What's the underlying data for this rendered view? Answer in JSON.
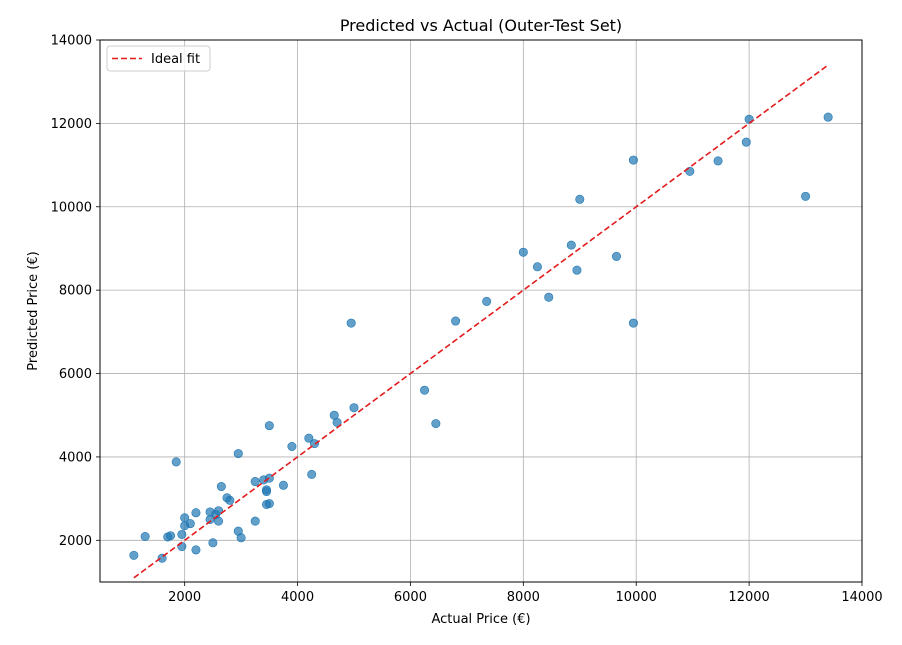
{
  "chart_data": {
    "type": "scatter",
    "title": "Predicted vs Actual (Outer-Test Set)",
    "xlabel": "Actual Price (€)",
    "ylabel": "Predicted Price (€)",
    "xlim": [
      500,
      14000
    ],
    "ylim": [
      1000,
      14000
    ],
    "xticks": [
      2000,
      4000,
      6000,
      8000,
      10000,
      12000,
      14000
    ],
    "yticks": [
      2000,
      4000,
      6000,
      8000,
      10000,
      12000,
      14000
    ],
    "grid": true,
    "legend_position": "top-left",
    "point_color": "#1f77b4",
    "line_color": "#e41a1c",
    "ideal_fit": {
      "name": "Ideal fit",
      "range": [
        1100,
        13400
      ]
    },
    "points": [
      [
        1100,
        1640
      ],
      [
        1300,
        2090
      ],
      [
        1600,
        1570
      ],
      [
        1700,
        2080
      ],
      [
        1750,
        2110
      ],
      [
        1850,
        3880
      ],
      [
        1950,
        1850
      ],
      [
        1950,
        2140
      ],
      [
        2000,
        2350
      ],
      [
        2000,
        2540
      ],
      [
        2100,
        2400
      ],
      [
        2200,
        1770
      ],
      [
        2200,
        2660
      ],
      [
        2450,
        2500
      ],
      [
        2450,
        2680
      ],
      [
        2500,
        1940
      ],
      [
        2550,
        2620
      ],
      [
        2600,
        2710
      ],
      [
        2600,
        2460
      ],
      [
        2650,
        3290
      ],
      [
        2750,
        3020
      ],
      [
        2800,
        2960
      ],
      [
        2950,
        2220
      ],
      [
        2950,
        4080
      ],
      [
        3000,
        2060
      ],
      [
        3250,
        2460
      ],
      [
        3250,
        3410
      ],
      [
        3400,
        3450
      ],
      [
        3450,
        2860
      ],
      [
        3450,
        3210
      ],
      [
        3450,
        3170
      ],
      [
        3500,
        2880
      ],
      [
        3500,
        3490
      ],
      [
        3500,
        4750
      ],
      [
        3750,
        3320
      ],
      [
        3900,
        4250
      ],
      [
        4200,
        4450
      ],
      [
        4250,
        3580
      ],
      [
        4300,
        4320
      ],
      [
        4650,
        5000
      ],
      [
        4700,
        4830
      ],
      [
        4950,
        7210
      ],
      [
        5000,
        5180
      ],
      [
        6250,
        5600
      ],
      [
        6450,
        4800
      ],
      [
        6800,
        7260
      ],
      [
        7350,
        7730
      ],
      [
        8000,
        8910
      ],
      [
        8250,
        8560
      ],
      [
        8450,
        7830
      ],
      [
        8850,
        9080
      ],
      [
        8950,
        8480
      ],
      [
        9000,
        10180
      ],
      [
        9650,
        8810
      ],
      [
        9950,
        11120
      ],
      [
        9950,
        7210
      ],
      [
        10950,
        10850
      ],
      [
        11450,
        11100
      ],
      [
        11950,
        11550
      ],
      [
        12000,
        12100
      ],
      [
        13000,
        10250
      ],
      [
        13400,
        12150
      ]
    ]
  }
}
